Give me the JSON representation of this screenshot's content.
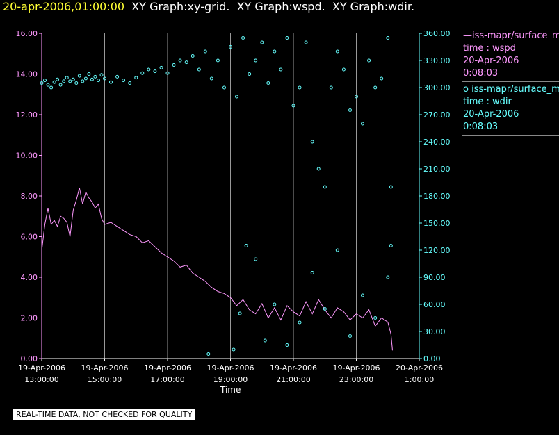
{
  "header": {
    "timestamp": "20-apr-2006,01:00:00",
    "graphs": "XY Graph:xy-grid.  XY Graph:wspd.  XY Graph:wdir."
  },
  "note": "REAL-TIME DATA, NOT CHECKED FOR QUALITY",
  "legend": [
    {
      "symbol": "—",
      "source": "iss-mapr/surface_m",
      "axes": "time : wspd",
      "date": "20-Apr-2006",
      "time": "0:08:03",
      "color": "#ff99ff"
    },
    {
      "symbol": "o",
      "source": "iss-mapr/surface_m",
      "axes": "time : wdir",
      "date": "20-Apr-2006",
      "time": "0:08:03",
      "color": "#66ffff"
    }
  ],
  "chart_data": {
    "type": "line",
    "xlabel": "Time",
    "x_ticks": [
      [
        "19-Apr-2006",
        "13:00:00"
      ],
      [
        "19-Apr-2006",
        "15:00:00"
      ],
      [
        "19-Apr-2006",
        "17:00:00"
      ],
      [
        "19-Apr-2006",
        "19:00:00"
      ],
      [
        "19-Apr-2006",
        "21:00:00"
      ],
      [
        "19-Apr-2006",
        "23:00:00"
      ],
      [
        "20-Apr-2006",
        "1:00:00"
      ]
    ],
    "xlim_hours": [
      13,
      25
    ],
    "y_left": {
      "ylim": [
        0,
        16
      ],
      "ticks": [
        "0.00",
        "2.00",
        "4.00",
        "6.00",
        "8.00",
        "10.00",
        "12.00",
        "14.00",
        "16.00"
      ],
      "color": "#ff99ff"
    },
    "y_right": {
      "ylim": [
        0,
        360
      ],
      "ticks": [
        "0.00",
        "30.00",
        "60.00",
        "90.00",
        "120.00",
        "150.00",
        "180.00",
        "210.00",
        "240.00",
        "270.00",
        "300.00",
        "330.00",
        "360.00"
      ],
      "color": "#66ffff"
    },
    "grid": "vertical lines at time ticks",
    "series": [
      {
        "name": "wspd",
        "style": "line",
        "color": "#ff99ff",
        "points": [
          [
            13.0,
            5.3
          ],
          [
            13.1,
            6.6
          ],
          [
            13.2,
            7.4
          ],
          [
            13.3,
            6.6
          ],
          [
            13.4,
            6.8
          ],
          [
            13.5,
            6.5
          ],
          [
            13.6,
            7.0
          ],
          [
            13.7,
            6.9
          ],
          [
            13.8,
            6.7
          ],
          [
            13.9,
            6.0
          ],
          [
            14.0,
            7.3
          ],
          [
            14.1,
            7.8
          ],
          [
            14.2,
            8.4
          ],
          [
            14.3,
            7.6
          ],
          [
            14.4,
            8.2
          ],
          [
            14.5,
            7.9
          ],
          [
            14.6,
            7.7
          ],
          [
            14.7,
            7.4
          ],
          [
            14.8,
            7.6
          ],
          [
            14.9,
            6.9
          ],
          [
            15.0,
            6.6
          ],
          [
            15.2,
            6.7
          ],
          [
            15.4,
            6.5
          ],
          [
            15.6,
            6.3
          ],
          [
            15.8,
            6.1
          ],
          [
            16.0,
            6.0
          ],
          [
            16.2,
            5.7
          ],
          [
            16.4,
            5.8
          ],
          [
            16.6,
            5.5
          ],
          [
            16.8,
            5.2
          ],
          [
            17.0,
            5.0
          ],
          [
            17.2,
            4.8
          ],
          [
            17.4,
            4.5
          ],
          [
            17.6,
            4.6
          ],
          [
            17.8,
            4.2
          ],
          [
            18.0,
            4.0
          ],
          [
            18.2,
            3.8
          ],
          [
            18.4,
            3.5
          ],
          [
            18.6,
            3.3
          ],
          [
            18.8,
            3.2
          ],
          [
            19.0,
            3.0
          ],
          [
            19.2,
            2.6
          ],
          [
            19.4,
            2.9
          ],
          [
            19.6,
            2.4
          ],
          [
            19.8,
            2.2
          ],
          [
            20.0,
            2.7
          ],
          [
            20.2,
            2.0
          ],
          [
            20.4,
            2.5
          ],
          [
            20.6,
            1.9
          ],
          [
            20.8,
            2.6
          ],
          [
            21.0,
            2.3
          ],
          [
            21.2,
            2.1
          ],
          [
            21.4,
            2.8
          ],
          [
            21.6,
            2.2
          ],
          [
            21.8,
            2.9
          ],
          [
            22.0,
            2.4
          ],
          [
            22.2,
            2.0
          ],
          [
            22.4,
            2.5
          ],
          [
            22.6,
            2.3
          ],
          [
            22.8,
            1.9
          ],
          [
            23.0,
            2.2
          ],
          [
            23.2,
            2.0
          ],
          [
            23.4,
            2.4
          ],
          [
            23.6,
            1.6
          ],
          [
            23.8,
            2.0
          ],
          [
            24.0,
            1.8
          ],
          [
            24.1,
            1.2
          ],
          [
            24.15,
            0.4
          ]
        ]
      },
      {
        "name": "wdir",
        "style": "scatter",
        "color": "#66ffff",
        "points": [
          [
            13.0,
            305
          ],
          [
            13.1,
            308
          ],
          [
            13.2,
            303
          ],
          [
            13.3,
            300
          ],
          [
            13.4,
            306
          ],
          [
            13.5,
            309
          ],
          [
            13.6,
            303
          ],
          [
            13.7,
            307
          ],
          [
            13.8,
            311
          ],
          [
            13.9,
            307
          ],
          [
            14.0,
            309
          ],
          [
            14.1,
            305
          ],
          [
            14.2,
            313
          ],
          [
            14.3,
            307
          ],
          [
            14.4,
            310
          ],
          [
            14.5,
            315
          ],
          [
            14.6,
            309
          ],
          [
            14.7,
            312
          ],
          [
            14.8,
            308
          ],
          [
            14.9,
            314
          ],
          [
            15.0,
            310
          ],
          [
            15.2,
            306
          ],
          [
            15.4,
            312
          ],
          [
            15.6,
            308
          ],
          [
            15.8,
            305
          ],
          [
            16.0,
            311
          ],
          [
            16.2,
            316
          ],
          [
            16.4,
            320
          ],
          [
            16.6,
            318
          ],
          [
            16.8,
            322
          ],
          [
            17.0,
            316
          ],
          [
            17.2,
            325
          ],
          [
            17.4,
            330
          ],
          [
            17.6,
            328
          ],
          [
            17.8,
            335
          ],
          [
            18.0,
            320
          ],
          [
            18.2,
            340
          ],
          [
            18.4,
            310
          ],
          [
            18.6,
            330
          ],
          [
            18.8,
            300
          ],
          [
            19.0,
            345
          ],
          [
            19.2,
            290
          ],
          [
            19.4,
            355
          ],
          [
            19.6,
            315
          ],
          [
            19.8,
            330
          ],
          [
            20.0,
            350
          ],
          [
            20.2,
            305
          ],
          [
            20.4,
            340
          ],
          [
            20.6,
            320
          ],
          [
            20.8,
            355
          ],
          [
            21.0,
            280
          ],
          [
            21.2,
            300
          ],
          [
            21.4,
            350
          ],
          [
            21.6,
            240
          ],
          [
            21.8,
            210
          ],
          [
            22.0,
            190
          ],
          [
            22.2,
            300
          ],
          [
            22.4,
            340
          ],
          [
            22.6,
            320
          ],
          [
            22.8,
            275
          ],
          [
            23.0,
            290
          ],
          [
            23.2,
            260
          ],
          [
            23.4,
            330
          ],
          [
            23.6,
            300
          ],
          [
            23.8,
            310
          ],
          [
            24.0,
            355
          ],
          [
            24.1,
            190
          ],
          [
            18.3,
            5
          ],
          [
            19.1,
            10
          ],
          [
            19.3,
            50
          ],
          [
            19.5,
            125
          ],
          [
            19.8,
            110
          ],
          [
            20.1,
            20
          ],
          [
            20.4,
            60
          ],
          [
            20.8,
            15
          ],
          [
            21.2,
            40
          ],
          [
            21.6,
            95
          ],
          [
            22.0,
            55
          ],
          [
            22.4,
            120
          ],
          [
            22.8,
            25
          ],
          [
            23.2,
            70
          ],
          [
            23.6,
            45
          ],
          [
            24.0,
            90
          ],
          [
            24.1,
            125
          ]
        ]
      }
    ]
  }
}
